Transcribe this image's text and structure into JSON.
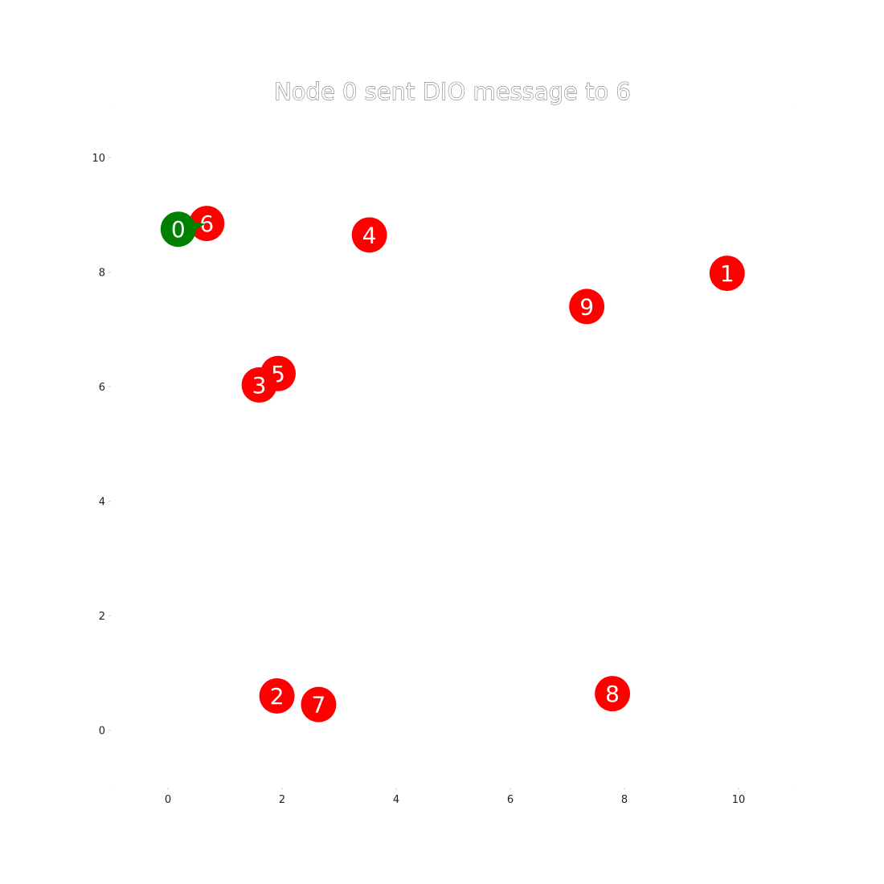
{
  "chart_data": {
    "type": "scatter",
    "title": "Node 0 sent DIO message to 6",
    "xlabel": "",
    "ylabel": "",
    "xlim": [
      -1,
      11
    ],
    "ylim": [
      -1,
      10.9
    ],
    "xticks": [
      "0",
      "2",
      "4",
      "6",
      "8",
      "10"
    ],
    "yticks": [
      "0",
      "2",
      "4",
      "6",
      "8",
      "10"
    ],
    "grid": false,
    "colors": {
      "sender": "#008000",
      "node": "#ff0000",
      "label": "#ffffff"
    },
    "nodes": [
      {
        "id": "0",
        "x": 0.18,
        "y": 8.75,
        "role": "sender"
      },
      {
        "id": "6",
        "x": 0.68,
        "y": 8.85,
        "role": "node"
      },
      {
        "id": "4",
        "x": 3.53,
        "y": 8.65,
        "role": "node"
      },
      {
        "id": "1",
        "x": 9.8,
        "y": 7.98,
        "role": "node"
      },
      {
        "id": "9",
        "x": 7.34,
        "y": 7.4,
        "role": "node"
      },
      {
        "id": "5",
        "x": 1.93,
        "y": 6.23,
        "role": "node"
      },
      {
        "id": "3",
        "x": 1.6,
        "y": 6.03,
        "role": "node"
      },
      {
        "id": "2",
        "x": 1.91,
        "y": 0.6,
        "role": "node"
      },
      {
        "id": "7",
        "x": 2.64,
        "y": 0.45,
        "role": "node"
      },
      {
        "id": "8",
        "x": 7.79,
        "y": 0.64,
        "role": "node"
      }
    ],
    "message": {
      "from": "0",
      "to": "6",
      "type": "DIO"
    }
  }
}
